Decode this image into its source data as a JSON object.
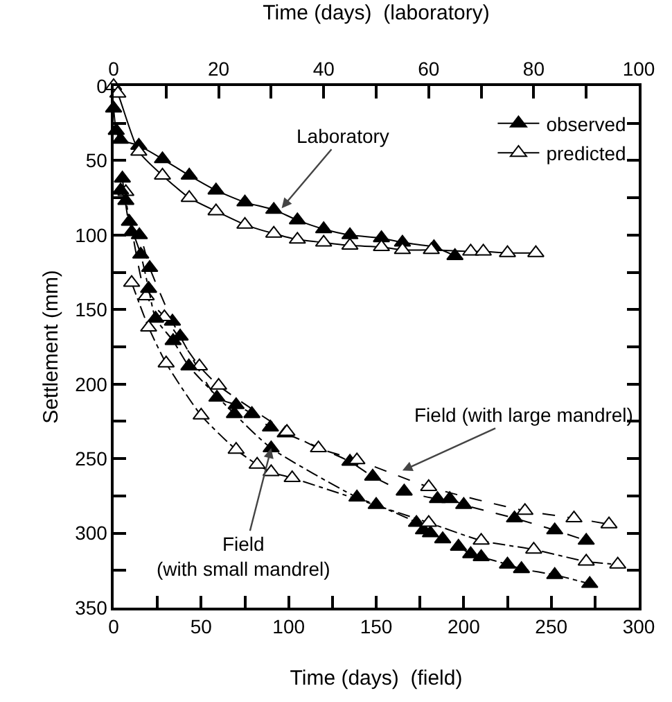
{
  "chart_data": {
    "type": "line",
    "xlabel": "Time (days)  (field)",
    "x2label": "Time (days)  (laboratory)",
    "ylabel": "Settlement (mm)",
    "xlim": [
      0,
      300
    ],
    "xticks": [
      0,
      {
        "value": 25,
        "label": null
      },
      50,
      {
        "value": 75,
        "label": null
      },
      100,
      {
        "value": 125,
        "label": null
      },
      150,
      {
        "value": 175,
        "label": null
      },
      200,
      {
        "value": 225,
        "label": null
      },
      250,
      {
        "value": 275,
        "label": null
      },
      300
    ],
    "x2lim": [
      0,
      100
    ],
    "x2ticks": [
      0,
      {
        "value": 10,
        "label": null
      },
      20,
      {
        "value": 30,
        "label": null
      },
      40,
      {
        "value": 50,
        "label": null
      },
      60,
      {
        "value": 70,
        "label": null
      },
      80,
      {
        "value": 90,
        "label": null
      },
      100
    ],
    "ylim": [
      350,
      0
    ],
    "yticks": [
      0,
      {
        "value": 25,
        "label": null
      },
      50,
      {
        "value": 75,
        "label": null
      },
      100,
      {
        "value": 125,
        "label": null
      },
      150,
      {
        "value": 175,
        "label": null
      },
      200,
      {
        "value": 225,
        "label": null
      },
      250,
      {
        "value": 275,
        "label": null
      },
      300,
      {
        "value": 325,
        "label": null
      },
      350
    ],
    "grid": false,
    "legend": "top right",
    "marker": "triangle",
    "series": [
      {
        "name": "observed",
        "color": "#000000",
        "axis": "x2",
        "line_style": "solid",
        "x": [
          0,
          0.5,
          1.3,
          4.8,
          9.3,
          14.4,
          19.5,
          25,
          30.5,
          35,
          40,
          45,
          51,
          55,
          61,
          65
        ],
        "values": [
          15,
          30,
          36,
          40,
          49,
          60,
          70,
          78,
          83,
          90,
          96,
          100,
          102,
          105,
          108,
          114
        ]
      },
      {
        "name": "predicted",
        "color": "#ffffff",
        "axis": "x2",
        "line_style": "solid",
        "x": [
          0,
          0.8,
          4.8,
          9.3,
          14.4,
          19.5,
          25,
          30.5,
          35,
          40,
          45,
          51,
          55,
          60.5,
          68,
          70.4,
          75,
          80.4
        ],
        "values": [
          0,
          5,
          44,
          60,
          75,
          84,
          93,
          99,
          103,
          105,
          107,
          108,
          110,
          110,
          111,
          111,
          112,
          112
        ]
      },
      {
        "color": "#000000",
        "line_style": "dashed",
        "x": [
          5,
          10.3,
          14.7,
          20.6,
          33.6,
          38,
          59,
          70,
          79,
          89.6,
          98,
          135,
          148,
          166,
          185,
          192,
          200,
          229,
          252,
          270
        ],
        "values": [
          62,
          98,
          100,
          122,
          158,
          168,
          209,
          214,
          220,
          229,
          233,
          252,
          262,
          272,
          277,
          277,
          281,
          290,
          298,
          305
        ]
      },
      {
        "color": "#ffffff",
        "line_style": "dashed",
        "x": [
          7,
          18.6,
          29,
          49,
          60,
          99,
          117,
          139,
          180,
          235,
          263,
          283
        ],
        "values": [
          71,
          141,
          155,
          188,
          201,
          232,
          243,
          251,
          269,
          285,
          290,
          294
        ]
      },
      {
        "color": "#000000",
        "line_style": "dashdot",
        "x": [
          4,
          7,
          9,
          15.5,
          20,
          24,
          34,
          43,
          69,
          90,
          139,
          150,
          173,
          177,
          181,
          188,
          197,
          204,
          210,
          225,
          233,
          252,
          272
        ],
        "values": [
          70,
          77,
          91,
          113,
          136,
          156,
          171,
          188,
          220,
          243,
          276,
          281,
          293,
          298,
          300,
          304,
          309,
          314,
          316,
          321,
          324,
          328,
          334
        ]
      },
      {
        "color": "#ffffff",
        "line_style": "dashdot",
        "x": [
          10.3,
          20,
          30,
          50,
          70,
          82,
          90,
          102,
          180,
          210,
          240,
          270,
          288
        ],
        "values": [
          132,
          162,
          186,
          221,
          244,
          254,
          259,
          263,
          293,
          305,
          311,
          319,
          321
        ]
      }
    ],
    "annotations": [
      {
        "text": "Laboratory",
        "x": 96,
        "y": 82
      },
      {
        "text": "Field (with large mandrel)",
        "x": 165,
        "y": 258
      },
      {
        "text": "Field\n(with small mandrel)",
        "x": 90,
        "y": 243
      }
    ]
  }
}
